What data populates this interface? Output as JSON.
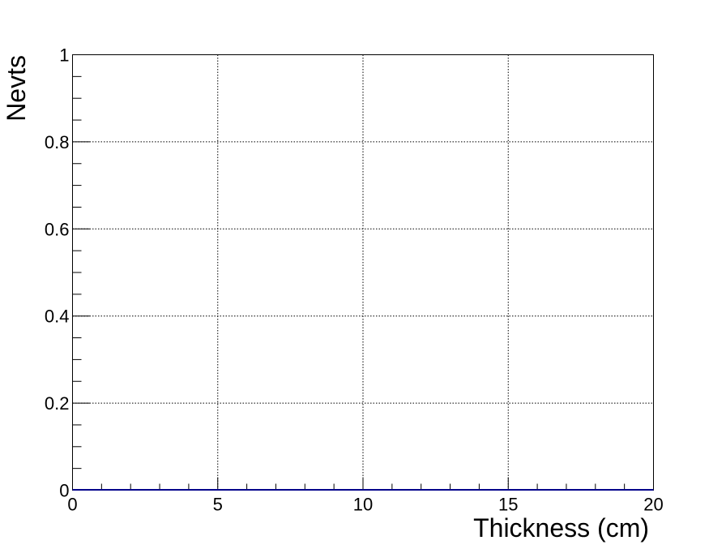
{
  "chart_data": {
    "type": "line",
    "title": "",
    "xlabel": "Thickness (cm)",
    "ylabel": "Nevts",
    "xlim": [
      0,
      20
    ],
    "ylim": [
      0,
      1
    ],
    "x_ticks": [
      0,
      5,
      10,
      15,
      20
    ],
    "y_ticks": [
      0,
      0.2,
      0.4,
      0.6,
      0.8,
      1
    ],
    "x_tick_labels": [
      "0",
      "5",
      "10",
      "15",
      "20"
    ],
    "y_tick_labels": [
      "0",
      "0.2",
      "0.4",
      "0.6",
      "0.8",
      "1"
    ],
    "x_minor_ticks": [
      1,
      2,
      3,
      4,
      6,
      7,
      8,
      9,
      11,
      12,
      13,
      14,
      16,
      17,
      18,
      19
    ],
    "y_minor_ticks": [
      0.05,
      0.1,
      0.15,
      0.25,
      0.3,
      0.35,
      0.45,
      0.5,
      0.55,
      0.65,
      0.7,
      0.75,
      0.85,
      0.9,
      0.95
    ],
    "grid": true,
    "series": [
      {
        "color": "#00008b",
        "x": [
          0,
          20
        ],
        "y": [
          0,
          0
        ]
      }
    ]
  }
}
